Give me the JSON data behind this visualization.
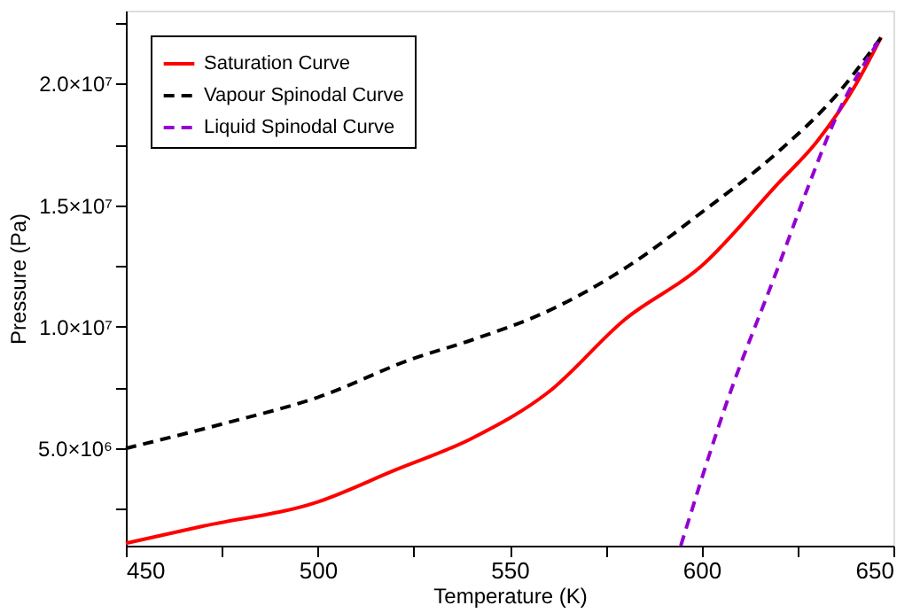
{
  "chart_data": {
    "type": "line",
    "xlabel": "Temperature (K)",
    "ylabel": "Pressure (Pa)",
    "xlim": [
      450,
      650
    ],
    "xticks": [
      450,
      {
        "value": 475,
        "label": null
      },
      500,
      {
        "value": 525,
        "label": null
      },
      550,
      {
        "value": 575,
        "label": null
      },
      600,
      {
        "value": 625,
        "label": null
      },
      650
    ],
    "ylim": [
      1000000,
      23000000
    ],
    "yticks": [
      {
        "value": 2500000,
        "label": null
      },
      {
        "value": 5000000,
        "label": "5.0×10⁶"
      },
      {
        "value": 7500000,
        "label": null
      },
      {
        "value": 10000000,
        "label": "1.0×10⁷"
      },
      {
        "value": 12500000,
        "label": null
      },
      {
        "value": 15000000,
        "label": "1.5×10⁷"
      },
      {
        "value": 17500000,
        "label": null
      },
      {
        "value": 20000000,
        "label": "2.0×10⁷"
      },
      {
        "value": 22500000,
        "label": null
      }
    ],
    "grid": false,
    "legend": "top left",
    "marker": "none",
    "series": [
      {
        "name": "Saturation Curve",
        "color": "#ff0000",
        "line_style": "solid",
        "x": [
          450,
          470,
          500,
          520,
          540,
          560,
          580,
          600,
          620,
          630,
          640,
          646.8
        ],
        "values": [
          1100000,
          1800000,
          2800000,
          4100000,
          5400000,
          7300000,
          10300000,
          12500000,
          15900000,
          17600000,
          19900000,
          21900000
        ]
      },
      {
        "name": "Vapour Spinodal Curve",
        "color": "#000000",
        "line_style": "dashed",
        "x": [
          450,
          475,
          500,
          525,
          540,
          560,
          580,
          600,
          620,
          635,
          646.8
        ],
        "values": [
          5000000,
          6000000,
          7100000,
          8700000,
          9450000,
          10650000,
          12400000,
          14700000,
          17200000,
          19500000,
          21900000
        ]
      },
      {
        "name": "Liquid Spinodal Curve",
        "color": "#9400d3",
        "line_style": "dashed",
        "x": [
          594.6,
          606.6,
          620.2,
          627.4,
          635.3,
          646.8
        ],
        "values": [
          1000000,
          6900000,
          12550000,
          15600000,
          18700000,
          21900000
        ]
      }
    ]
  }
}
